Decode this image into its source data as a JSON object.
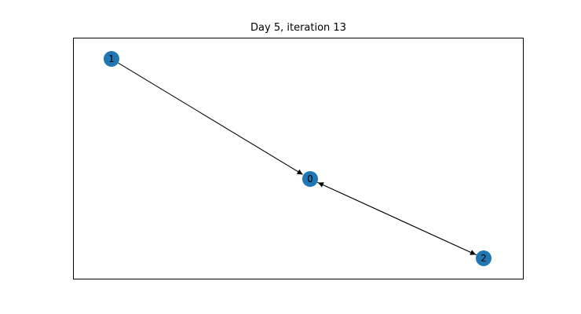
{
  "title": "Day 5, iteration 13",
  "style": {
    "node_color": "#1f77b4",
    "edge_color": "#000000",
    "frame_color": "#000000",
    "background": "#ffffff"
  },
  "nodes": [
    {
      "id": "0",
      "label": "0"
    },
    {
      "id": "1",
      "label": "1"
    },
    {
      "id": "2",
      "label": "2"
    }
  ],
  "edges": [
    {
      "source": "1",
      "target": "0"
    },
    {
      "source": "0",
      "target": "2"
    },
    {
      "source": "2",
      "target": "0"
    }
  ]
}
